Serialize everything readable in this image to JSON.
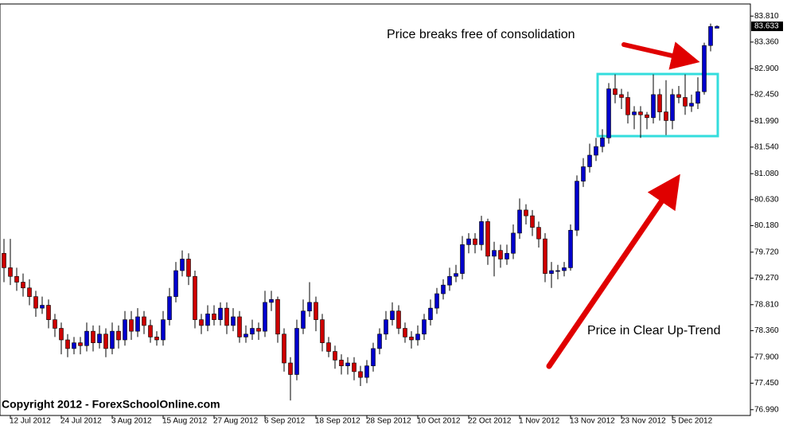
{
  "chart_data": {
    "type": "candlestick",
    "up_color": "#0000cc",
    "down_color": "#cc0000",
    "categories": [
      null,
      "12 Jul 2012",
      null,
      null,
      null,
      null,
      null,
      null,
      null,
      "24 Jul 2012",
      null,
      null,
      null,
      null,
      null,
      null,
      null,
      "3 Aug 2012",
      null,
      null,
      null,
      null,
      null,
      null,
      null,
      "15 Aug 2012",
      null,
      null,
      null,
      null,
      null,
      null,
      null,
      "27 Aug 2012",
      null,
      null,
      null,
      null,
      null,
      null,
      null,
      "6 Sep 2012",
      null,
      null,
      null,
      null,
      null,
      null,
      null,
      "18 Sep 2012",
      null,
      null,
      null,
      null,
      null,
      null,
      null,
      "28 Sep 2012",
      null,
      null,
      null,
      null,
      null,
      null,
      null,
      "10 Oct 2012",
      null,
      null,
      null,
      null,
      null,
      null,
      null,
      "22 Oct 2012",
      null,
      null,
      null,
      null,
      null,
      null,
      null,
      "1 Nov 2012",
      null,
      null,
      null,
      null,
      null,
      null,
      null,
      "13 Nov 2012",
      null,
      null,
      null,
      null,
      null,
      null,
      null,
      "23 Nov 2012",
      null,
      null,
      null,
      null,
      null,
      null,
      null,
      "5 Dec 2012",
      null,
      null,
      null,
      null,
      null,
      null,
      null
    ],
    "open": [
      79.7,
      79.45,
      79.3,
      79.2,
      79.1,
      78.95,
      78.75,
      78.8,
      78.55,
      78.4,
      78.2,
      78.05,
      78.15,
      78.1,
      78.35,
      78.15,
      78.3,
      78.05,
      78.35,
      78.2,
      78.55,
      78.35,
      78.6,
      78.45,
      78.25,
      78.2,
      78.55,
      78.95,
      79.4,
      79.6,
      79.3,
      78.55,
      78.45,
      78.65,
      78.55,
      78.75,
      78.45,
      78.6,
      78.25,
      78.3,
      78.4,
      78.35,
      78.85,
      78.9,
      78.3,
      77.8,
      77.6,
      78.4,
      78.7,
      78.85,
      78.55,
      78.15,
      78.0,
      77.85,
      77.75,
      77.8,
      77.65,
      77.55,
      77.75,
      78.05,
      78.3,
      78.55,
      78.7,
      78.4,
      78.25,
      78.2,
      78.3,
      78.55,
      78.75,
      79.0,
      79.15,
      79.3,
      79.35,
      79.85,
      79.95,
      79.85,
      80.25,
      79.65,
      79.75,
      79.6,
      79.7,
      80.05,
      80.45,
      80.35,
      80.15,
      79.95,
      79.35,
      79.4,
      79.4,
      79.45,
      80.1,
      80.95,
      81.2,
      81.4,
      81.55,
      81.7,
      82.55,
      82.45,
      82.4,
      82.1,
      82.15,
      82.1,
      82.05,
      82.45,
      82.15,
      82.0,
      82.45,
      82.4,
      82.25,
      82.3,
      82.5,
      83.3,
      83.6
    ],
    "high": [
      79.95,
      79.95,
      79.45,
      79.35,
      79.25,
      79.05,
      78.95,
      78.9,
      78.65,
      78.5,
      78.3,
      78.25,
      78.25,
      78.5,
      78.45,
      78.45,
      78.4,
      78.5,
      78.45,
      78.7,
      78.7,
      78.75,
      78.7,
      78.55,
      78.35,
      78.7,
      79.1,
      79.55,
      79.75,
      79.7,
      79.4,
      78.65,
      78.8,
      78.8,
      78.85,
      78.85,
      78.75,
      78.7,
      78.45,
      78.55,
      78.5,
      79.05,
      79.05,
      78.95,
      78.4,
      77.9,
      78.55,
      78.9,
      79.2,
      78.95,
      78.65,
      78.25,
      78.1,
      77.95,
      77.9,
      77.9,
      77.75,
      77.85,
      78.15,
      78.4,
      78.7,
      78.85,
      78.8,
      78.5,
      78.35,
      78.45,
      78.65,
      78.9,
      79.1,
      79.25,
      79.45,
      79.5,
      80.0,
      80.05,
      80.05,
      80.35,
      80.3,
      79.9,
      79.85,
      79.85,
      80.2,
      80.65,
      80.55,
      80.45,
      80.25,
      80.05,
      79.55,
      79.5,
      79.55,
      80.2,
      81.05,
      81.35,
      81.6,
      81.7,
      81.85,
      82.65,
      82.8,
      82.55,
      82.5,
      82.25,
      82.25,
      82.15,
      82.8,
      82.55,
      82.7,
      82.55,
      82.6,
      82.8,
      82.45,
      82.75,
      83.35,
      83.68,
      83.65
    ],
    "low": [
      79.2,
      79.15,
      79.05,
      78.95,
      78.8,
      78.6,
      78.65,
      78.4,
      78.25,
      77.95,
      77.9,
      77.95,
      77.95,
      78.0,
      78.0,
      78.05,
      77.9,
      77.95,
      78.05,
      78.1,
      78.2,
      78.25,
      78.3,
      78.15,
      78.1,
      78.1,
      78.45,
      78.85,
      79.3,
      79.15,
      78.4,
      78.3,
      78.35,
      78.45,
      78.45,
      78.3,
      78.35,
      78.15,
      78.15,
      78.2,
      78.2,
      78.25,
      78.7,
      78.15,
      77.65,
      77.15,
      77.5,
      78.3,
      78.6,
      78.35,
      78.0,
      77.9,
      77.7,
      77.6,
      77.6,
      77.5,
      77.4,
      77.45,
      77.65,
      77.95,
      78.2,
      78.45,
      78.3,
      78.15,
      78.05,
      78.1,
      78.2,
      78.45,
      78.65,
      78.9,
      79.05,
      79.2,
      79.25,
      79.7,
      79.7,
      79.75,
      79.5,
      79.3,
      79.45,
      79.5,
      79.6,
      79.95,
      80.2,
      80.0,
      79.8,
      79.2,
      79.1,
      79.25,
      79.3,
      79.4,
      80.0,
      80.85,
      81.1,
      81.3,
      81.45,
      81.6,
      82.3,
      82.2,
      81.95,
      81.85,
      81.7,
      81.85,
      81.95,
      82.0,
      81.75,
      81.85,
      82.3,
      82.1,
      82.15,
      82.2,
      82.45,
      83.2,
      83.6
    ],
    "close": [
      79.45,
      79.3,
      79.2,
      79.1,
      78.95,
      78.75,
      78.8,
      78.55,
      78.4,
      78.2,
      78.05,
      78.15,
      78.1,
      78.35,
      78.15,
      78.3,
      78.05,
      78.35,
      78.2,
      78.55,
      78.35,
      78.6,
      78.45,
      78.25,
      78.2,
      78.55,
      78.95,
      79.4,
      79.6,
      79.3,
      78.55,
      78.45,
      78.65,
      78.55,
      78.75,
      78.45,
      78.6,
      78.25,
      78.3,
      78.4,
      78.35,
      78.85,
      78.9,
      78.3,
      77.8,
      77.6,
      78.4,
      78.7,
      78.85,
      78.55,
      78.15,
      78.0,
      77.85,
      77.75,
      77.8,
      77.65,
      77.55,
      77.75,
      78.05,
      78.3,
      78.55,
      78.7,
      78.4,
      78.25,
      78.2,
      78.3,
      78.55,
      78.75,
      79.0,
      79.15,
      79.3,
      79.35,
      79.85,
      79.95,
      79.85,
      80.25,
      79.65,
      79.75,
      79.6,
      79.7,
      80.05,
      80.45,
      80.35,
      80.15,
      79.95,
      79.35,
      79.4,
      79.4,
      79.45,
      80.1,
      80.95,
      81.2,
      81.4,
      81.55,
      81.7,
      82.55,
      82.45,
      82.4,
      82.1,
      82.15,
      82.1,
      82.05,
      82.45,
      82.15,
      82.0,
      82.45,
      82.4,
      82.25,
      82.3,
      82.5,
      83.3,
      83.63,
      83.633
    ],
    "ylim": [
      76.89,
      84.02
    ],
    "yticks": [
      {
        "value": 83.81,
        "label": "83.810"
      },
      {
        "value": 83.36,
        "label": "83.360"
      },
      {
        "value": 82.9,
        "label": "82.900"
      },
      {
        "value": 82.45,
        "label": "82.450"
      },
      {
        "value": 81.99,
        "label": "81.990"
      },
      {
        "value": 81.54,
        "label": "81.540"
      },
      {
        "value": 81.08,
        "label": "81.080"
      },
      {
        "value": 80.63,
        "label": "80.630"
      },
      {
        "value": 80.18,
        "label": "80.180"
      },
      {
        "value": 79.72,
        "label": "79.720"
      },
      {
        "value": 79.27,
        "label": "79.270"
      },
      {
        "value": 78.81,
        "label": "78.810"
      },
      {
        "value": 78.36,
        "label": "78.360"
      },
      {
        "value": 77.9,
        "label": "77.900"
      },
      {
        "value": 77.45,
        "label": "77.450"
      },
      {
        "value": 76.99,
        "label": "76.990"
      }
    ],
    "annotations": [
      "Price breaks free of consolidation",
      "Price in Clear Up-Trend"
    ],
    "copyright": "Copyright 2012 - ForexSchoolOnline.com"
  }
}
